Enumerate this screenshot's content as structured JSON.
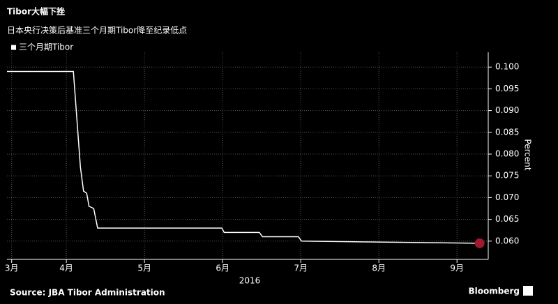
{
  "chart_data": {
    "type": "line",
    "title": "Tibor大幅下挫",
    "subtitle": "日本央行决策后基准三个月期Tibor降至纪录低点",
    "xlabel": "2016",
    "ylabel": "Percent",
    "source": "Source: JBA Tibor Administration",
    "brand": "Bloomberg",
    "legend": "top-left",
    "grid": true,
    "x": [
      3.24,
      4.09,
      4.18,
      4.22,
      4.26,
      4.29,
      4.35,
      4.4,
      5.99,
      6.02,
      6.47,
      6.51,
      6.97,
      7.01,
      9.29
    ],
    "series": [
      {
        "name": "三个月期Tibor",
        "color": "#ffffff",
        "values": [
          0.099,
          0.099,
          0.077,
          0.0715,
          0.071,
          0.068,
          0.0675,
          0.063,
          0.063,
          0.062,
          0.062,
          0.061,
          0.061,
          0.06,
          0.0595
        ]
      }
    ],
    "last_point_color": "#a0192e",
    "xlim": [
      3.24,
      9.4
    ],
    "xticks": [
      {
        "value": 3.3,
        "label": "3月"
      },
      {
        "value": 4,
        "label": "4月"
      },
      {
        "value": 5,
        "label": "5月"
      },
      {
        "value": 6,
        "label": "6月"
      },
      {
        "value": 7,
        "label": "7月"
      },
      {
        "value": 8,
        "label": "8月"
      },
      {
        "value": 9,
        "label": "9月"
      }
    ],
    "ylim": [
      0.0558,
      0.1034
    ],
    "yticks": [
      {
        "value": 0.06,
        "label": "0.060"
      },
      {
        "value": 0.065,
        "label": "0.065"
      },
      {
        "value": 0.07,
        "label": "0.070"
      },
      {
        "value": 0.075,
        "label": "0.075"
      },
      {
        "value": 0.08,
        "label": "0.080"
      },
      {
        "value": 0.085,
        "label": "0.085"
      },
      {
        "value": 0.09,
        "label": "0.090"
      },
      {
        "value": 0.095,
        "label": "0.095"
      },
      {
        "value": 0.1,
        "label": "0.100"
      }
    ]
  }
}
